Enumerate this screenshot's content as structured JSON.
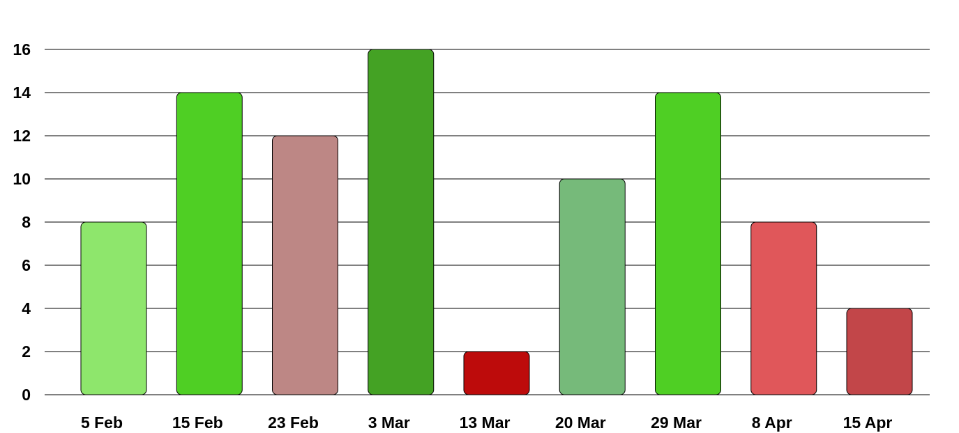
{
  "chart_data": {
    "type": "bar",
    "title": "",
    "xlabel": "",
    "ylabel": "",
    "categories": [
      "5 Feb",
      "15 Feb",
      "23 Feb",
      "3 Mar",
      "13 Mar",
      "20 Mar",
      "29 Mar",
      "8 Apr",
      "15 Apr"
    ],
    "values": [
      8,
      14,
      12,
      16,
      2,
      10,
      14,
      8,
      4
    ],
    "colors": [
      "#8ee66c",
      "#4fcf24",
      "#bd8785",
      "#44a224",
      "#bd0b0b",
      "#76ba7a",
      "#4fcf24",
      "#e0575a",
      "#c24649"
    ],
    "ylim": [
      0,
      16
    ],
    "yticks": [
      0,
      2,
      4,
      6,
      8,
      10,
      12,
      14,
      16
    ],
    "grid": true,
    "legend": "none"
  }
}
